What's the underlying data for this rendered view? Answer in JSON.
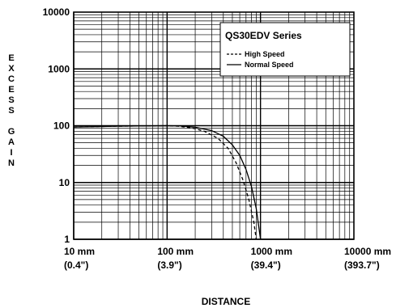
{
  "chart_data": {
    "type": "line",
    "title": "QS30EDV Series",
    "xlabel": "DISTANCE",
    "ylabel": "EXCESS GAIN",
    "x_scale": "log",
    "y_scale": "log",
    "xlim": [
      10,
      10000
    ],
    "ylim": [
      1,
      10000
    ],
    "x_tick_labels": [
      {
        "value": 10,
        "line1": "10 mm",
        "line2": "(0.4\")"
      },
      {
        "value": 100,
        "line1": "100 mm",
        "line2": "(3.9\")"
      },
      {
        "value": 1000,
        "line1": "1000 mm",
        "line2": "(39.4\")"
      },
      {
        "value": 10000,
        "line1": "10000 mm",
        "line2": "(393.7\")"
      }
    ],
    "y_tick_labels": [
      {
        "value": 1,
        "label": "1"
      },
      {
        "value": 10,
        "label": "10"
      },
      {
        "value": 100,
        "label": "100"
      },
      {
        "value": 1000,
        "label": "1000"
      },
      {
        "value": 10000,
        "label": "10000"
      }
    ],
    "grid": true,
    "legend_position": "top-right",
    "series": [
      {
        "name": "High Speed",
        "style": "dashed",
        "x": [
          10,
          30,
          100,
          130,
          180,
          250,
          350,
          450,
          550,
          650,
          750,
          850,
          900
        ],
        "y": [
          95,
          98,
          100,
          98,
          92,
          80,
          60,
          40,
          22,
          11,
          5,
          2,
          1
        ]
      },
      {
        "name": "Normal Speed",
        "style": "solid",
        "x": [
          10,
          30,
          100,
          140,
          200,
          300,
          400,
          500,
          600,
          700,
          800,
          900,
          1000
        ],
        "y": [
          95,
          98,
          100,
          99,
          94,
          82,
          65,
          46,
          30,
          17,
          8.5,
          3.5,
          1
        ]
      }
    ],
    "colors": {
      "line": "#000000",
      "grid": "#000000",
      "background": "#ffffff"
    }
  },
  "corner_text": "... ... ..."
}
